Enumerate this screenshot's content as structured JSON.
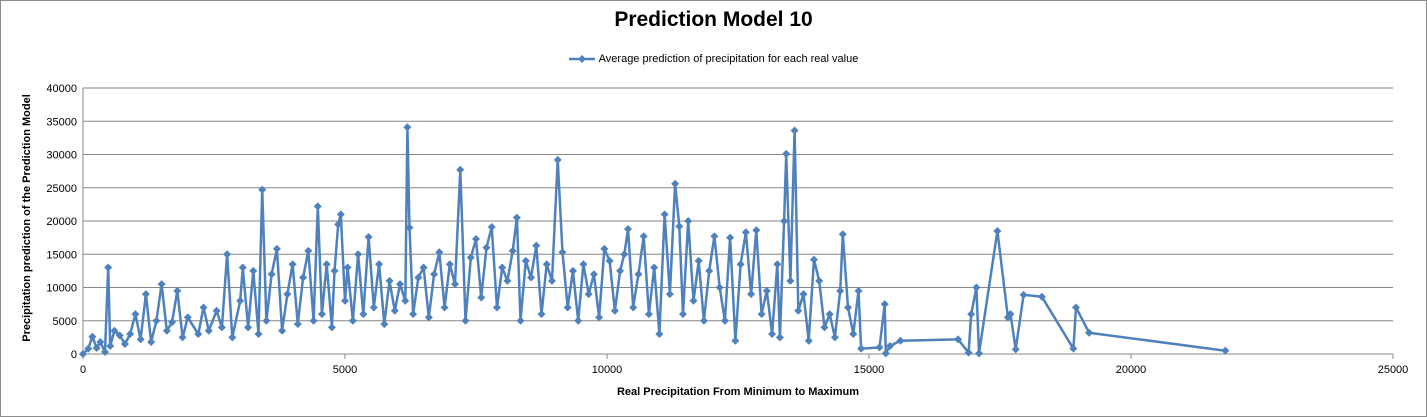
{
  "chart_data": {
    "type": "line",
    "title": "Prediction Model 10",
    "xlabel": "Real Precipitation From Minimum to Maximum",
    "ylabel": "Precipitation prediction of the Prediction Model",
    "xlim": [
      0,
      25000
    ],
    "ylim": [
      0,
      40000
    ],
    "x_ticks": [
      "0",
      "5000",
      "10000",
      "15000",
      "20000",
      "25000"
    ],
    "y_ticks": [
      "0",
      "5000",
      "10000",
      "15000",
      "20000",
      "25000",
      "30000",
      "35000",
      "40000"
    ],
    "grid": "horizontal",
    "legend_position": "top",
    "series": [
      {
        "name": "Average prediction of precipitation for each real value",
        "color": "#4f81bd",
        "marker": "diamond",
        "points": [
          [
            0,
            0
          ],
          [
            100,
            800
          ],
          [
            180,
            2600
          ],
          [
            260,
            900
          ],
          [
            330,
            1800
          ],
          [
            420,
            300
          ],
          [
            480,
            13000
          ],
          [
            520,
            1200
          ],
          [
            600,
            3500
          ],
          [
            700,
            2800
          ],
          [
            800,
            1500
          ],
          [
            900,
            3000
          ],
          [
            1000,
            6000
          ],
          [
            1100,
            2200
          ],
          [
            1200,
            9000
          ],
          [
            1300,
            1800
          ],
          [
            1400,
            5000
          ],
          [
            1500,
            10500
          ],
          [
            1600,
            3500
          ],
          [
            1700,
            4800
          ],
          [
            1800,
            9500
          ],
          [
            1900,
            2500
          ],
          [
            2000,
            5500
          ],
          [
            2200,
            3000
          ],
          [
            2300,
            7000
          ],
          [
            2400,
            3500
          ],
          [
            2550,
            6500
          ],
          [
            2650,
            4000
          ],
          [
            2750,
            15000
          ],
          [
            2850,
            2500
          ],
          [
            3000,
            8000
          ],
          [
            3050,
            13000
          ],
          [
            3150,
            4000
          ],
          [
            3250,
            12500
          ],
          [
            3350,
            3000
          ],
          [
            3420,
            24700
          ],
          [
            3500,
            5000
          ],
          [
            3600,
            12000
          ],
          [
            3700,
            15800
          ],
          [
            3800,
            3500
          ],
          [
            3900,
            9000
          ],
          [
            4000,
            13500
          ],
          [
            4100,
            4500
          ],
          [
            4200,
            11500
          ],
          [
            4300,
            15500
          ],
          [
            4400,
            5000
          ],
          [
            4480,
            22200
          ],
          [
            4560,
            6000
          ],
          [
            4650,
            13500
          ],
          [
            4750,
            4000
          ],
          [
            4800,
            12500
          ],
          [
            4870,
            19500
          ],
          [
            4920,
            21000
          ],
          [
            5000,
            8000
          ],
          [
            5050,
            13000
          ],
          [
            5150,
            5000
          ],
          [
            5250,
            15000
          ],
          [
            5350,
            6000
          ],
          [
            5450,
            17600
          ],
          [
            5550,
            7000
          ],
          [
            5650,
            13500
          ],
          [
            5750,
            4500
          ],
          [
            5850,
            11000
          ],
          [
            5950,
            6500
          ],
          [
            6050,
            10500
          ],
          [
            6150,
            8000
          ],
          [
            6190,
            34100
          ],
          [
            6230,
            19000
          ],
          [
            6300,
            6000
          ],
          [
            6400,
            11500
          ],
          [
            6500,
            13000
          ],
          [
            6600,
            5500
          ],
          [
            6700,
            12000
          ],
          [
            6800,
            15300
          ],
          [
            6900,
            7000
          ],
          [
            7000,
            13500
          ],
          [
            7100,
            10500
          ],
          [
            7200,
            27700
          ],
          [
            7300,
            5000
          ],
          [
            7400,
            14500
          ],
          [
            7500,
            17300
          ],
          [
            7600,
            8500
          ],
          [
            7700,
            16000
          ],
          [
            7800,
            19100
          ],
          [
            7900,
            7000
          ],
          [
            8000,
            13000
          ],
          [
            8100,
            11000
          ],
          [
            8200,
            15500
          ],
          [
            8280,
            20500
          ],
          [
            8350,
            5000
          ],
          [
            8450,
            14000
          ],
          [
            8550,
            11500
          ],
          [
            8650,
            16300
          ],
          [
            8750,
            6000
          ],
          [
            8850,
            13500
          ],
          [
            8950,
            11000
          ],
          [
            9060,
            29200
          ],
          [
            9150,
            15300
          ],
          [
            9250,
            7000
          ],
          [
            9350,
            12500
          ],
          [
            9450,
            5000
          ],
          [
            9550,
            13500
          ],
          [
            9650,
            9000
          ],
          [
            9750,
            12000
          ],
          [
            9850,
            5500
          ],
          [
            9950,
            15800
          ],
          [
            10050,
            14000
          ],
          [
            10150,
            6500
          ],
          [
            10250,
            12500
          ],
          [
            10330,
            15000
          ],
          [
            10400,
            18800
          ],
          [
            10500,
            7000
          ],
          [
            10600,
            12000
          ],
          [
            10700,
            17700
          ],
          [
            10800,
            6000
          ],
          [
            10900,
            13000
          ],
          [
            11000,
            3000
          ],
          [
            11100,
            21000
          ],
          [
            11200,
            9000
          ],
          [
            11300,
            25600
          ],
          [
            11380,
            19200
          ],
          [
            11450,
            6000
          ],
          [
            11550,
            20000
          ],
          [
            11650,
            8000
          ],
          [
            11750,
            14000
          ],
          [
            11850,
            5000
          ],
          [
            11950,
            12500
          ],
          [
            12050,
            17700
          ],
          [
            12150,
            10000
          ],
          [
            12250,
            5000
          ],
          [
            12350,
            17500
          ],
          [
            12450,
            2000
          ],
          [
            12550,
            13500
          ],
          [
            12650,
            18300
          ],
          [
            12750,
            9000
          ],
          [
            12850,
            18600
          ],
          [
            12950,
            6000
          ],
          [
            13050,
            9500
          ],
          [
            13150,
            3000
          ],
          [
            13250,
            13500
          ],
          [
            13300,
            2500
          ],
          [
            13380,
            20000
          ],
          [
            13420,
            30100
          ],
          [
            13500,
            11000
          ],
          [
            13580,
            33600
          ],
          [
            13650,
            6500
          ],
          [
            13750,
            9000
          ],
          [
            13850,
            2000
          ],
          [
            13950,
            14200
          ],
          [
            14050,
            11000
          ],
          [
            14150,
            4000
          ],
          [
            14250,
            6000
          ],
          [
            14350,
            2500
          ],
          [
            14450,
            9500
          ],
          [
            14500,
            18000
          ],
          [
            14600,
            7000
          ],
          [
            14700,
            3000
          ],
          [
            14800,
            9500
          ],
          [
            14850,
            800
          ],
          [
            15200,
            1000
          ],
          [
            15300,
            7500
          ],
          [
            15320,
            100
          ],
          [
            15400,
            1200
          ],
          [
            15600,
            2000
          ],
          [
            16700,
            2200
          ],
          [
            16900,
            200
          ],
          [
            16950,
            6000
          ],
          [
            17050,
            10000
          ],
          [
            17100,
            100
          ],
          [
            17450,
            18500
          ],
          [
            17650,
            5500
          ],
          [
            17700,
            6000
          ],
          [
            17800,
            700
          ],
          [
            17950,
            8900
          ],
          [
            18300,
            8600
          ],
          [
            18900,
            800
          ],
          [
            18950,
            7000
          ],
          [
            19200,
            3200
          ],
          [
            21800,
            500
          ]
        ]
      }
    ]
  }
}
